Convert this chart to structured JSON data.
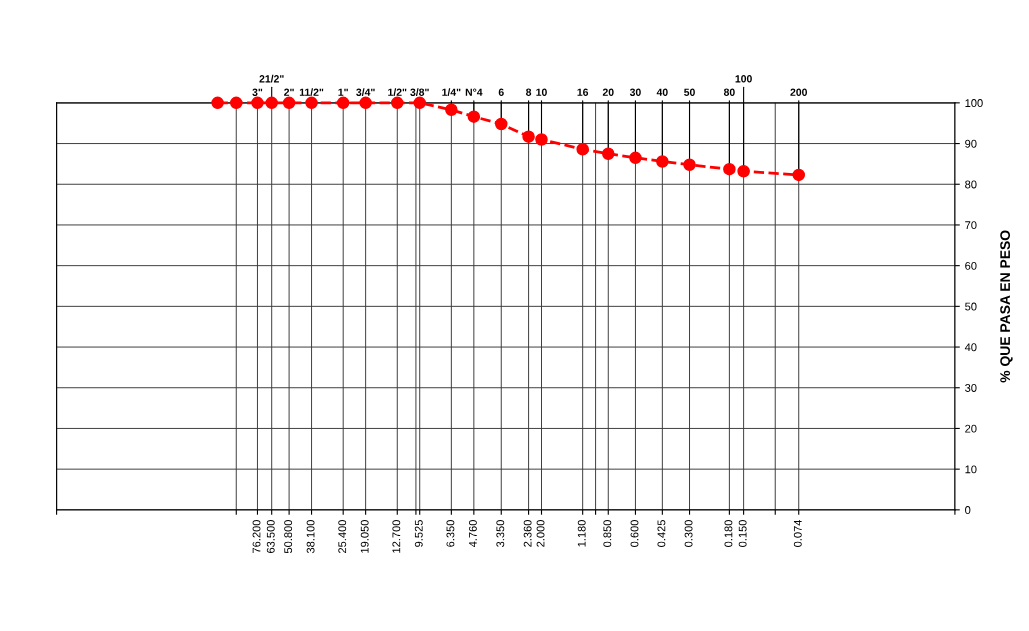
{
  "chart_data": {
    "type": "line",
    "ylabel": "% QUE PASA EN PESO",
    "x": [
      127,
      100,
      76.2,
      63.5,
      50.8,
      38.1,
      25.4,
      19.05,
      12.7,
      9.525,
      6.35,
      4.76,
      3.35,
      2.36,
      2.0,
      1.18,
      0.85,
      0.6,
      0.425,
      0.3,
      0.18,
      0.15,
      0.074
    ],
    "series": [
      {
        "color": "#ff0000",
        "values": [
          100,
          100,
          100,
          100,
          100,
          100,
          100,
          100,
          100,
          100,
          98.3,
          96.6,
          94.8,
          91.7,
          91,
          88.6,
          87.5,
          86.5,
          85.6,
          84.8,
          83.7,
          83.2,
          82.3
        ]
      }
    ],
    "log": "x",
    "xlim": [
      1000,
      0.01
    ],
    "ylim": [
      0,
      100
    ],
    "xticks": [
      {
        "value": 1000,
        "label": null
      },
      {
        "value": 100,
        "label": null
      },
      {
        "value": 10,
        "label": null
      },
      {
        "value": 1,
        "label": null
      },
      {
        "value": 0.1,
        "label": null
      },
      {
        "value": 0.01,
        "label": null
      },
      {
        "value": 76.2,
        "label": "76.200"
      },
      {
        "value": 63.5,
        "label": "63.500"
      },
      {
        "value": 50.8,
        "label": "50.800"
      },
      {
        "value": 38.1,
        "label": "38.100"
      },
      {
        "value": 25.4,
        "label": "25.400"
      },
      {
        "value": 19.05,
        "label": "19.050"
      },
      {
        "value": 12.7,
        "label": "12.700"
      },
      {
        "value": 9.525,
        "label": "9.525"
      },
      {
        "value": 6.35,
        "label": "6.350"
      },
      {
        "value": 4.76,
        "label": "4.760"
      },
      {
        "value": 3.35,
        "label": "3.350"
      },
      {
        "value": 2.36,
        "label": "2.360"
      },
      {
        "value": 2.0,
        "label": "2.000"
      },
      {
        "value": 1.18,
        "label": "1.180"
      },
      {
        "value": 0.85,
        "label": "0.850"
      },
      {
        "value": 0.6,
        "label": "0.600"
      },
      {
        "value": 0.425,
        "label": "0.425"
      },
      {
        "value": 0.3,
        "label": "0.300"
      },
      {
        "value": 0.18,
        "label": "0.180"
      },
      {
        "value": 0.15,
        "label": "0.150"
      },
      {
        "value": 0.074,
        "label": "0.074"
      }
    ],
    "annotations": [
      {
        "text": "3\"",
        "x": 76.2,
        "y": 100
      },
      {
        "text": "21/2\"",
        "x": 63.5,
        "y": 100
      },
      {
        "text": "2\"",
        "x": 50.8,
        "y": 100
      },
      {
        "text": "11/2\"",
        "x": 38.1,
        "y": 100
      },
      {
        "text": "1\"",
        "x": 25.4,
        "y": 100
      },
      {
        "text": "3/4\"",
        "x": 19.05,
        "y": 100
      },
      {
        "text": "1/2\"",
        "x": 12.7,
        "y": 100
      },
      {
        "text": "3/8\"",
        "x": 9.525,
        "y": 100
      },
      {
        "text": "1/4\"",
        "x": 6.35,
        "y": 98.3
      },
      {
        "text": "N°4",
        "x": 4.76,
        "y": 96.6
      },
      {
        "text": "6",
        "x": 3.35,
        "y": 94.8
      },
      {
        "text": "8",
        "x": 2.36,
        "y": 91.7
      },
      {
        "text": "10",
        "x": 2.0,
        "y": 91
      },
      {
        "text": "16",
        "x": 1.18,
        "y": 88.6
      },
      {
        "text": "20",
        "x": 0.85,
        "y": 87.5
      },
      {
        "text": "30",
        "x": 0.6,
        "y": 86.5
      },
      {
        "text": "40",
        "x": 0.425,
        "y": 85.6
      },
      {
        "text": "50",
        "x": 0.3,
        "y": 84.8
      },
      {
        "text": "80",
        "x": 0.18,
        "y": 83.7
      },
      {
        "text": "100",
        "x": 0.15,
        "y": 83.2
      },
      {
        "text": "200",
        "x": 0.074,
        "y": 82.3
      }
    ],
    "yticks": [
      0,
      10,
      20,
      30,
      40,
      50,
      60,
      70,
      80,
      90,
      100
    ],
    "grid": true,
    "marker": "circle",
    "line_style": "dashed",
    "legend": false
  }
}
